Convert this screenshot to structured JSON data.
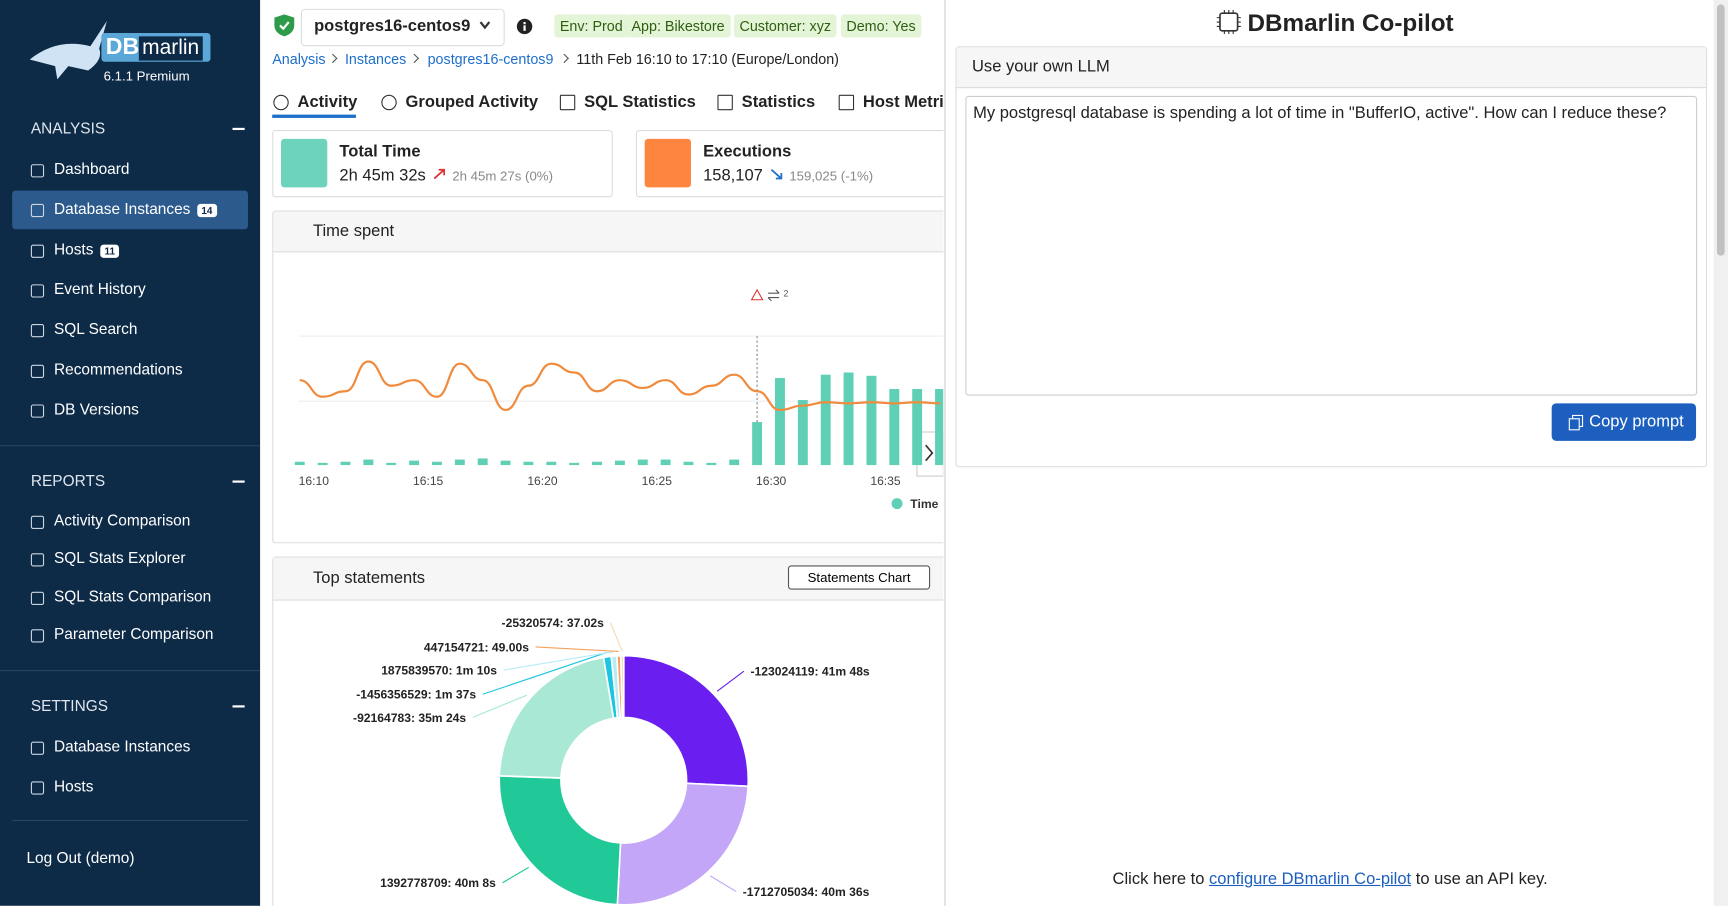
{
  "sidebar": {
    "logo_db": "DB",
    "logo_marlin": "marlin",
    "version": "6.1.1 Premium",
    "sections": [
      {
        "title": "ANALYSIS",
        "items": [
          {
            "label": "Dashboard"
          },
          {
            "label": "Database Instances",
            "badge": "14"
          },
          {
            "label": "Hosts",
            "badge": "11"
          },
          {
            "label": "Event History"
          },
          {
            "label": "SQL Search"
          },
          {
            "label": "Recommendations"
          },
          {
            "label": "DB Versions"
          }
        ]
      },
      {
        "title": "REPORTS",
        "items": [
          {
            "label": "Activity Comparison"
          },
          {
            "label": "SQL Stats Explorer"
          },
          {
            "label": "SQL Stats Comparison"
          },
          {
            "label": "Parameter Comparison"
          }
        ]
      },
      {
        "title": "SETTINGS",
        "items": [
          {
            "label": "Database Instances"
          },
          {
            "label": "Hosts"
          }
        ]
      }
    ],
    "logout": "Log Out (demo)"
  },
  "header": {
    "instance": "postgres16-centos9",
    "tags": [
      "Env: Prod",
      "App: Bikestore",
      "Customer: xyz",
      "Demo: Yes"
    ],
    "breadcrumb": [
      "Analysis",
      "Instances",
      "postgres16-centos9"
    ],
    "time_range": "11th Feb 16:10 to 17:10 (Europe/London)",
    "tabs": [
      "Activity",
      "Grouped Activity",
      "SQL Statistics",
      "Statistics",
      "Host Metrics"
    ]
  },
  "kpis": [
    {
      "title": "Total Time",
      "value": "2h 45m 32s",
      "compare": "2h 45m 27s (0%)"
    },
    {
      "title": "Executions",
      "value": "158,107",
      "compare": "159,025 (-1%)"
    }
  ],
  "time_spent": {
    "title": "Time spent",
    "annotation": "2",
    "xticks": [
      "16:10",
      "16:15",
      "16:20",
      "16:25",
      "16:30",
      "16:35"
    ],
    "legend": "Time",
    "bar_color": "#5fd0b5",
    "line_color": "#f08a3c",
    "bars": [
      3,
      2,
      3,
      5,
      2,
      4,
      3,
      5,
      6,
      4,
      3,
      3,
      2,
      3,
      4,
      5,
      5,
      3,
      2,
      5,
      39,
      79,
      59,
      82,
      84,
      81,
      69,
      69,
      69
    ],
    "line": [
      77,
      62,
      67,
      94,
      72,
      77,
      62,
      92,
      77,
      50,
      72,
      92,
      84,
      67,
      77,
      70,
      77,
      64,
      72,
      82,
      67,
      50,
      54,
      57,
      56,
      57,
      56,
      57,
      56
    ]
  },
  "top_statements": {
    "title": "Top statements",
    "button": "Statements Chart",
    "slices": [
      {
        "label": "-123024119: 41m 48s",
        "value": 2508,
        "color": "#6a1ff0"
      },
      {
        "label": "-1712705034: 40m 36s",
        "value": 2436,
        "color": "#c3a6f7"
      },
      {
        "label": "1392778709: 40m 8s",
        "value": 2408,
        "color": "#20c997"
      },
      {
        "label": "-92164783: 35m 24s",
        "value": 2124,
        "color": "#a8e8d4"
      },
      {
        "label": "-1456356529: 1m 37s",
        "value": 97,
        "color": "#1cc6e0"
      },
      {
        "label": "1875839570: 1m 10s",
        "value": 70,
        "color": "#b7ecf7"
      },
      {
        "label": "447154721: 49.00s",
        "value": 49,
        "color": "#f5a25d"
      },
      {
        "label": "-25320574: 37.02s",
        "value": 37.02,
        "color": "#fbd7b5"
      }
    ]
  },
  "copilot": {
    "title": "DBmarlin Co-pilot",
    "card_title": "Use your own LLM",
    "prompt": "My postgresql database is spending a lot of time in \"BufferIO, active\". How can I reduce these?",
    "button": "Copy prompt",
    "footer_pre": "Click here to",
    "footer_link": "configure DBmarlin Co-pilot",
    "footer_post": "to use an API key."
  }
}
